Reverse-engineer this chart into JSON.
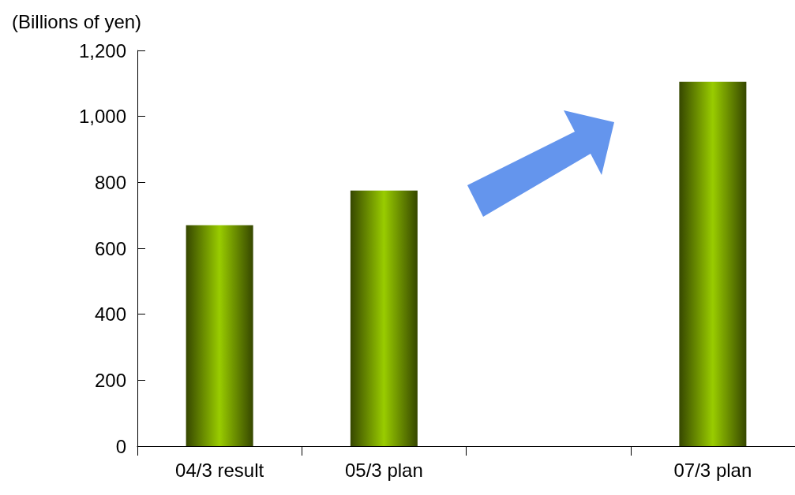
{
  "chart_data": {
    "type": "bar",
    "ylabel": "(Billions of yen)",
    "categories": [
      "04/3 result",
      "05/3 plan",
      null,
      "07/3 plan"
    ],
    "values": [
      670,
      775,
      null,
      1105
    ],
    "color": "#99cc00",
    "ylim": [
      0,
      1200
    ],
    "yticks": [
      0,
      200,
      400,
      600,
      800,
      {
        "value": 1000,
        "label": "1,000"
      },
      {
        "value": 1200,
        "label": "1,200"
      }
    ],
    "grid": false
  }
}
